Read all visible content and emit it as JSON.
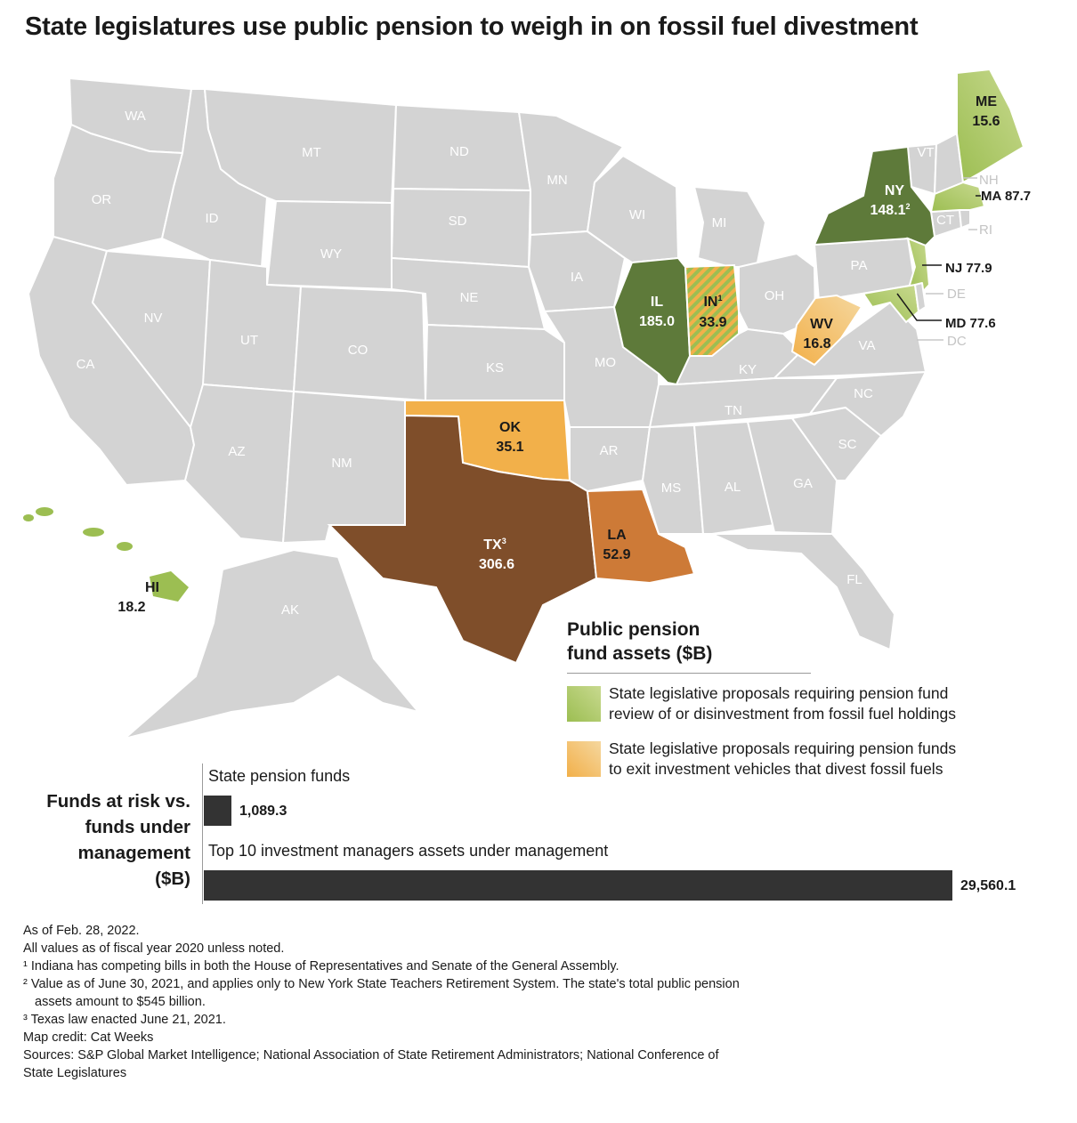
{
  "title": "State legislatures use public pension to weigh in on fossil fuel divestment",
  "colors": {
    "base_state": "#d3d3d3",
    "review_light": "#c8d98f",
    "review_mid": "#9cbe52",
    "review_dark": "#5e7a3a",
    "exit_light": "#f5d79e",
    "exit_mid": "#f2b04a",
    "exit_orange": "#cd7a37",
    "exit_dark": "#7f4e2a"
  },
  "map": {
    "base_states": [
      "WA",
      "OR",
      "CA",
      "ID",
      "NV",
      "MT",
      "WY",
      "UT",
      "AZ",
      "CO",
      "NM",
      "ND",
      "SD",
      "NE",
      "KS",
      "MN",
      "IA",
      "MO",
      "AR",
      "WI",
      "MI",
      "OH",
      "KY",
      "TN",
      "MS",
      "AL",
      "GA",
      "FL",
      "SC",
      "NC",
      "VA",
      "PA",
      "VT",
      "NH",
      "CT",
      "RI",
      "DE",
      "DC",
      "AK"
    ],
    "highlighted": [
      {
        "state": "ME",
        "label": "ME",
        "value": "15.6",
        "category": "review"
      },
      {
        "state": "NY",
        "label": "NY",
        "value": "148.1",
        "sup": "2",
        "category": "review"
      },
      {
        "state": "MA",
        "label": "MA",
        "value": "87.7",
        "category": "review"
      },
      {
        "state": "NJ",
        "label": "NJ",
        "value": "77.9",
        "category": "review"
      },
      {
        "state": "MD",
        "label": "MD",
        "value": "77.6",
        "category": "review"
      },
      {
        "state": "IL",
        "label": "IL",
        "value": "185.0",
        "category": "review"
      },
      {
        "state": "HI",
        "label": "HI",
        "value": "18.2",
        "category": "review"
      },
      {
        "state": "IN",
        "label": "IN",
        "value": "33.9",
        "sup": "1",
        "category": "both"
      },
      {
        "state": "WV",
        "label": "WV",
        "value": "16.8",
        "category": "exit"
      },
      {
        "state": "OK",
        "label": "OK",
        "value": "35.1",
        "category": "exit"
      },
      {
        "state": "TX",
        "label": "TX",
        "value": "306.6",
        "sup": "3",
        "category": "exit"
      },
      {
        "state": "LA",
        "label": "LA",
        "value": "52.9",
        "category": "exit"
      }
    ]
  },
  "legend": {
    "title_line1": "Public pension",
    "title_line2": "fund assets ($B)",
    "items": [
      {
        "line1": "State legislative proposals requiring pension fund",
        "line2": "review of or disinvestment from fossil fuel holdings"
      },
      {
        "line1": "State legislative proposals requiring pension funds",
        "line2": "to exit investment vehicles that divest fossil fuels"
      }
    ]
  },
  "bar_section": {
    "heading_line1": "Funds at risk vs.",
    "heading_line2": "funds under",
    "heading_line3": "management",
    "heading_line4": "($B)"
  },
  "chart_data": {
    "type": "bar",
    "categories": [
      "State pension funds",
      "Top 10 investment managers assets under management"
    ],
    "values": [
      1089.3,
      29560.1
    ],
    "value_labels": [
      "1,089.3",
      "29,560.1"
    ]
  },
  "notes": [
    "As of Feb. 28, 2022.",
    "All values as of fiscal year 2020 unless noted.",
    "¹ Indiana has competing bills in both the House of Representatives and Senate of the General Assembly.",
    "² Value as of June 30, 2021, and applies only to New York State Teachers Retirement System. The state's total public pension",
    "assets amount to $545 billion.",
    "³ Texas law enacted June 21, 2021.",
    "Map credit: Cat Weeks",
    "Sources: S&P Global Market Intelligence; National Association of State Retirement Administrators; National Conference of",
    "State Legislatures"
  ]
}
